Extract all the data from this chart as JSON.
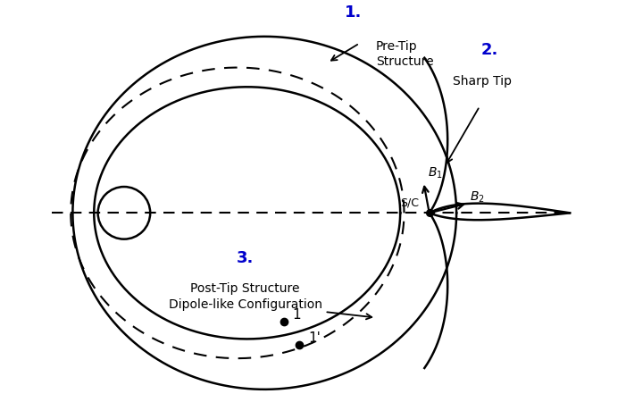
{
  "bg_color": "#ffffff",
  "line_color": "#000000",
  "blue_color": "#0000cc",
  "figsize": [
    7.01,
    4.69
  ],
  "dpi": 100,
  "sc_label": "S/C",
  "b1_label": "B_1",
  "b2_label": "B_2",
  "pt1_label": "1",
  "pt1p_label": "1'",
  "label1_num": "1.",
  "label1_text": "Pre-Tip\nStructure",
  "label2_num": "2.",
  "label2_text": "Sharp Tip",
  "label3_num": "3.",
  "label3_text": "Post-Tip Structure\nDipole-like Configuration"
}
